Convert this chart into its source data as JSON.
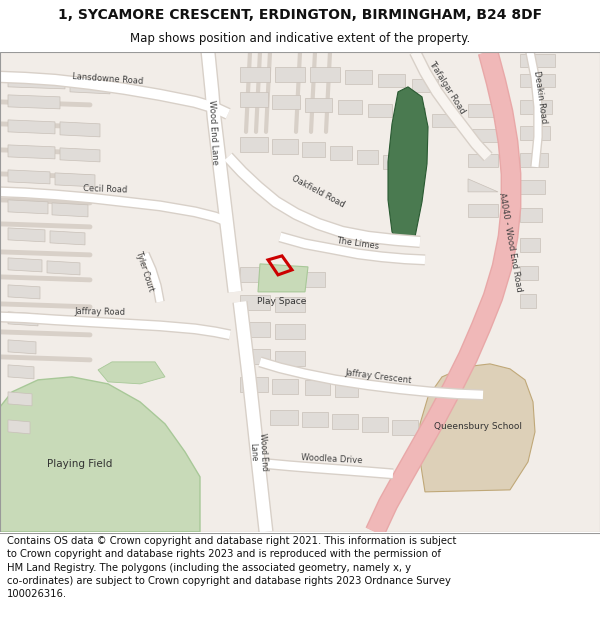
{
  "title": "1, SYCAMORE CRESCENT, ERDINGTON, BIRMINGHAM, B24 8DF",
  "subtitle": "Map shows position and indicative extent of the property.",
  "footer_lines": [
    "Contains OS data © Crown copyright and database right 2021. This information is subject to Crown copyright and database rights 2023 and is reproduced with the permission of",
    "HM Land Registry. The polygons (including the associated geometry, namely x, y co-ordinates) are subject to Crown copyright and database rights 2023 Ordnance Survey",
    "100026316."
  ],
  "map_bg": "#f2ede8",
  "road_major_color": "#f0b8b8",
  "road_minor_color": "#ffffff",
  "road_outline_color": "#d8d0c8",
  "building_color": "#e0dcd8",
  "building_outline": "#c8c0b8",
  "green_light": "#c8dab8",
  "green_dark": "#4a7a50",
  "play_green": "#c8dab8",
  "school_color": "#ddd0b8",
  "highlight_color": "#cc0000",
  "title_fontsize": 10,
  "subtitle_fontsize": 8.5,
  "footer_fontsize": 7.2,
  "label_color": "#404040"
}
